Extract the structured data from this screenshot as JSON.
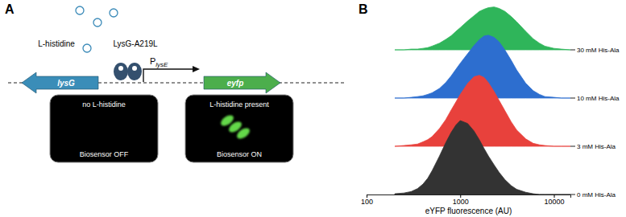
{
  "diagram": {
    "panel_label": "A",
    "ligand_label": "L-histidine",
    "regulator_label": "LysG-A219L",
    "promoter": {
      "main": "P",
      "sub": "lysE"
    },
    "genes": [
      {
        "label": "lysG",
        "color": "#3a8db8"
      },
      {
        "label": "eyfp",
        "color": "#4cae4c"
      }
    ],
    "states": [
      {
        "top": "no L-histidine",
        "bottom": "Biosensor OFF"
      },
      {
        "top": "L-histidine present",
        "bottom": "Biosensor ON"
      }
    ]
  },
  "chart_data": {
    "type": "ridgeline",
    "panel_label": "B",
    "x_label": "eYFP fluorescence (AU)",
    "log": "x",
    "tick_labels": "x",
    "x": [
      200,
      250,
      300,
      350,
      400,
      450,
      500,
      600,
      700,
      800,
      900,
      1000,
      1200,
      1400,
      1600,
      1800,
      2000,
      2300,
      2600,
      3000,
      3500,
      4000,
      5000,
      6000,
      7000,
      8000,
      10000,
      12000,
      15000
    ],
    "xlim": [
      100,
      15000
    ],
    "xticks": [
      100,
      1000,
      10000
    ],
    "ylim": [
      0,
      100
    ],
    "series": [
      {
        "name": "0 mM His-Ala",
        "color": "#333333",
        "values": [
          1,
          2,
          4,
          8,
          14,
          22,
          32,
          52,
          70,
          84,
          94,
          100,
          96,
          86,
          74,
          62,
          52,
          40,
          30,
          20,
          12,
          7,
          3,
          1,
          0,
          0,
          0,
          0,
          0
        ]
      },
      {
        "name": "3 mM His-Ala",
        "color": "#e8413c",
        "values": [
          0,
          1,
          2,
          3,
          6,
          9,
          13,
          24,
          36,
          49,
          60,
          70,
          85,
          94,
          96,
          93,
          86,
          74,
          62,
          48,
          33,
          22,
          10,
          4,
          2,
          1,
          0,
          0,
          0
        ]
      },
      {
        "name": "10 mM His-Ala",
        "color": "#2d6ecf",
        "values": [
          0,
          0,
          1,
          2,
          3,
          5,
          7,
          13,
          21,
          30,
          39,
          47,
          60,
          71,
          79,
          84,
          85,
          82,
          76,
          65,
          51,
          38,
          20,
          10,
          5,
          2,
          1,
          0,
          0
        ]
      },
      {
        "name": "30 mM His-Ala",
        "color": "#2fb55a",
        "values": [
          0,
          0,
          1,
          1,
          2,
          3,
          5,
          9,
          14,
          19,
          25,
          30,
          39,
          46,
          52,
          55,
          57,
          58,
          56,
          52,
          45,
          38,
          25,
          15,
          9,
          5,
          2,
          1,
          0
        ]
      }
    ]
  }
}
